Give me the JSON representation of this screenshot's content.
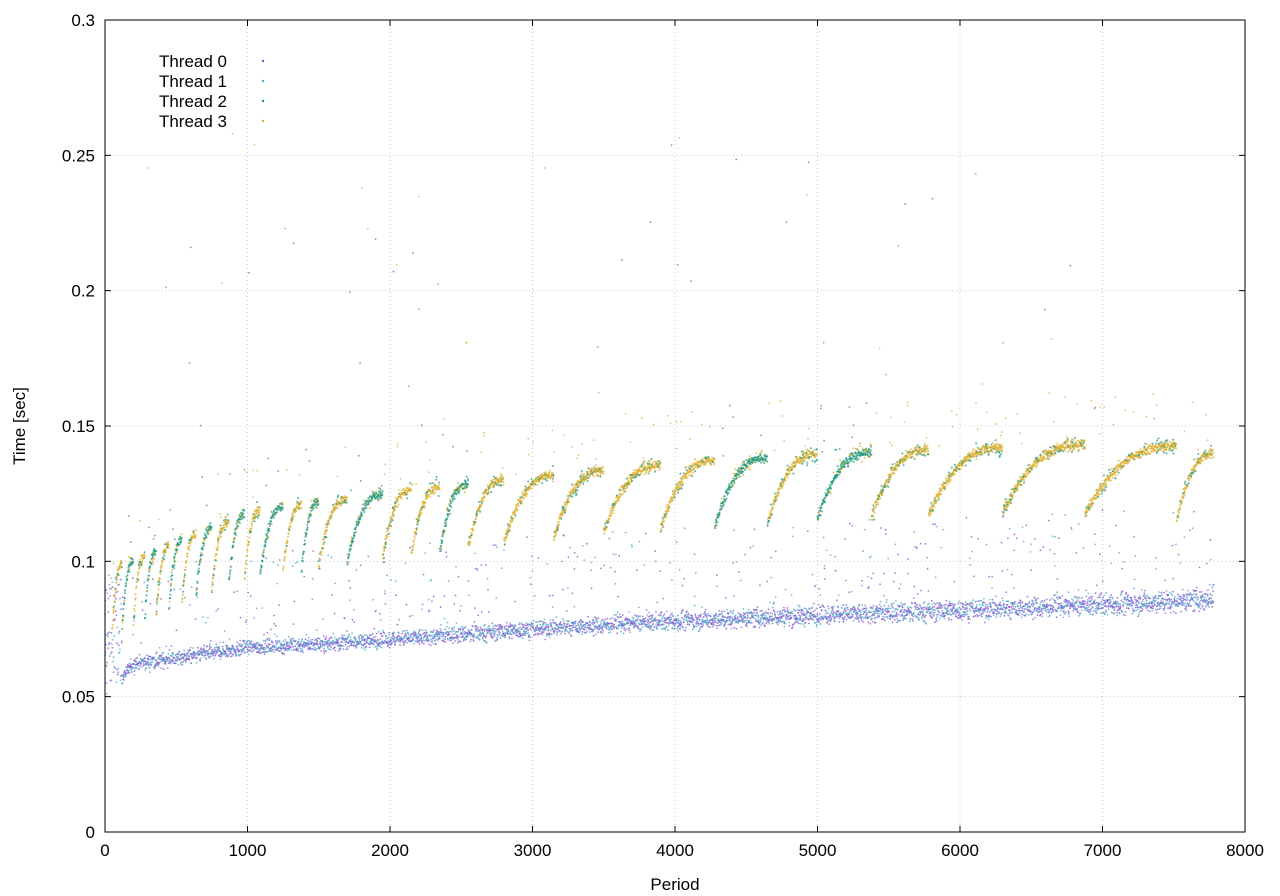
{
  "chart_data": {
    "type": "scatter",
    "title": "",
    "xlabel": "Period",
    "ylabel": "Time [sec]",
    "xlim": [
      0,
      8000
    ],
    "ylim": [
      0,
      0.3
    ],
    "x_ticks": [
      "0",
      "1000",
      "2000",
      "3000",
      "4000",
      "5000",
      "6000",
      "7000",
      "8000"
    ],
    "y_ticks": [
      "0",
      "0.05",
      "0.1",
      "0.15",
      "0.2",
      "0.25",
      "0.3"
    ],
    "grid": true,
    "legend_position": "top-left",
    "series": [
      {
        "name": "Thread 0",
        "color": "#8b4fd6",
        "description_values": "Baseline group, Period 0 to ~7780",
        "trend": [
          [
            0,
            0.05
          ],
          [
            200,
            0.062
          ],
          [
            1000,
            0.068
          ],
          [
            2000,
            0.071
          ],
          [
            3000,
            0.075
          ],
          [
            4000,
            0.078
          ],
          [
            5000,
            0.08
          ],
          [
            6000,
            0.082
          ],
          [
            7000,
            0.084
          ],
          [
            7780,
            0.086
          ]
        ]
      },
      {
        "name": "Thread 1",
        "color": "#4aa8c8",
        "description_values": "Baseline group, Period 0 to ~7780",
        "trend": [
          [
            0,
            0.05
          ],
          [
            200,
            0.062
          ],
          [
            1000,
            0.068
          ],
          [
            2000,
            0.071
          ],
          [
            3000,
            0.075
          ],
          [
            4000,
            0.078
          ],
          [
            5000,
            0.08
          ],
          [
            6000,
            0.082
          ],
          [
            7000,
            0.084
          ],
          [
            7780,
            0.086
          ]
        ]
      },
      {
        "name": "Thread 2",
        "color": "#1e9a82",
        "description_values": "Sawtooth group, Period 0 to ~7780",
        "trend": [
          [
            100,
            0.095
          ],
          [
            1000,
            0.115
          ],
          [
            2000,
            0.122
          ],
          [
            3000,
            0.128
          ],
          [
            4000,
            0.133
          ],
          [
            5000,
            0.136
          ],
          [
            6000,
            0.138
          ],
          [
            7000,
            0.14
          ],
          [
            7780,
            0.135
          ]
        ]
      },
      {
        "name": "Thread 3",
        "color": "#e0b030",
        "description_values": "Sawtooth group, Period 0 to ~7780",
        "trend": [
          [
            100,
            0.095
          ],
          [
            1000,
            0.115
          ],
          [
            2000,
            0.122
          ],
          [
            3000,
            0.128
          ],
          [
            4000,
            0.133
          ],
          [
            5000,
            0.136
          ],
          [
            6000,
            0.138
          ],
          [
            7000,
            0.14
          ],
          [
            7780,
            0.135
          ]
        ]
      }
    ],
    "sawtooth_segments": [
      {
        "x0": 50,
        "x1": 120,
        "thread": 3
      },
      {
        "x0": 120,
        "x1": 200,
        "thread": 2
      },
      {
        "x0": 200,
        "x1": 280,
        "thread": 3
      },
      {
        "x0": 280,
        "x1": 360,
        "thread": 2
      },
      {
        "x0": 360,
        "x1": 450,
        "thread": 3
      },
      {
        "x0": 450,
        "x1": 540,
        "thread": 2
      },
      {
        "x0": 540,
        "x1": 640,
        "thread": 3
      },
      {
        "x0": 640,
        "x1": 750,
        "thread": 2
      },
      {
        "x0": 750,
        "x1": 870,
        "thread": 3
      },
      {
        "x0": 870,
        "x1": 980,
        "thread": 2
      },
      {
        "x0": 980,
        "x1": 1090,
        "thread": 3
      },
      {
        "x0": 1090,
        "x1": 1250,
        "thread": 2
      },
      {
        "x0": 1250,
        "x1": 1380,
        "thread": 3
      },
      {
        "x0": 1380,
        "x1": 1500,
        "thread": 2
      },
      {
        "x0": 1500,
        "x1": 1700,
        "thread": 3
      },
      {
        "x0": 1700,
        "x1": 1950,
        "thread": 2
      },
      {
        "x0": 1950,
        "x1": 2150,
        "thread": 3
      },
      {
        "x0": 2150,
        "x1": 2350,
        "thread": 3
      },
      {
        "x0": 2350,
        "x1": 2550,
        "thread": 2
      },
      {
        "x0": 2550,
        "x1": 2800,
        "thread": 3
      },
      {
        "x0": 2800,
        "x1": 3150,
        "thread": 3
      },
      {
        "x0": 3150,
        "x1": 3500,
        "thread": 3
      },
      {
        "x0": 3500,
        "x1": 3900,
        "thread": 3
      },
      {
        "x0": 3900,
        "x1": 4280,
        "thread": 3
      },
      {
        "x0": 4280,
        "x1": 4650,
        "thread": 2
      },
      {
        "x0": 4650,
        "x1": 5000,
        "thread": 3
      },
      {
        "x0": 5000,
        "x1": 5380,
        "thread": 2
      },
      {
        "x0": 5380,
        "x1": 5780,
        "thread": 3
      },
      {
        "x0": 5780,
        "x1": 6300,
        "thread": 3
      },
      {
        "x0": 6300,
        "x1": 6880,
        "thread": 3
      },
      {
        "x0": 6880,
        "x1": 7520,
        "thread": 3
      },
      {
        "x0": 7520,
        "x1": 7780,
        "thread": 3
      }
    ]
  }
}
